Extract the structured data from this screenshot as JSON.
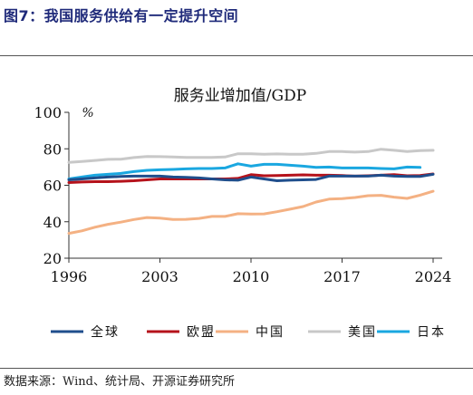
{
  "figure_title": "图7：我国服务供给有一定提升空间",
  "source_note": "数据来源：Wind、统计局、开源证券研究所",
  "chart_data": {
    "type": "line",
    "title": "服务业增加值/GDP",
    "unit_label": "%",
    "xlabel": "",
    "ylabel": "",
    "xlim": [
      1996,
      2024
    ],
    "ylim": [
      20,
      100
    ],
    "x_ticks": [
      1996,
      2003,
      2010,
      2017,
      2024
    ],
    "y_ticks": [
      20,
      40,
      60,
      80,
      100
    ],
    "grid": false,
    "legend_position": "bottom",
    "series": [
      {
        "name": "全球",
        "color": "#1f4e8c",
        "x": [
          1996,
          1997,
          1998,
          1999,
          2000,
          2001,
          2002,
          2003,
          2004,
          2005,
          2006,
          2007,
          2008,
          2009,
          2010,
          2011,
          2012,
          2013,
          2014,
          2015,
          2016,
          2017,
          2018,
          2019,
          2020,
          2021,
          2022,
          2023,
          2024
        ],
        "y": [
          63.0,
          63.5,
          64.0,
          64.5,
          64.8,
          65.0,
          65.0,
          65.0,
          64.5,
          64.3,
          64.0,
          63.5,
          63.0,
          62.8,
          64.5,
          63.5,
          62.5,
          62.8,
          63.0,
          63.2,
          65.0,
          65.0,
          65.0,
          65.0,
          65.5,
          65.0,
          64.8,
          64.8,
          66.0
        ]
      },
      {
        "name": "欧盟",
        "color": "#b5121b",
        "x": [
          1996,
          1997,
          1998,
          1999,
          2000,
          2001,
          2002,
          2003,
          2004,
          2005,
          2006,
          2007,
          2008,
          2009,
          2010,
          2011,
          2012,
          2013,
          2014,
          2015,
          2016,
          2017,
          2018,
          2019,
          2020,
          2021,
          2022,
          2023,
          2024
        ],
        "y": [
          61.5,
          61.8,
          62.0,
          62.0,
          62.2,
          62.5,
          63.0,
          63.5,
          63.5,
          63.5,
          63.5,
          63.5,
          63.5,
          63.8,
          65.8,
          65.2,
          65.3,
          65.5,
          65.7,
          65.5,
          65.5,
          65.3,
          65.0,
          65.2,
          65.5,
          65.8,
          65.2,
          65.3,
          66.2
        ]
      },
      {
        "name": "中国",
        "color": "#f4b183",
        "x": [
          1996,
          1997,
          1998,
          1999,
          2000,
          2001,
          2002,
          2003,
          2004,
          2005,
          2006,
          2007,
          2008,
          2009,
          2010,
          2011,
          2012,
          2013,
          2014,
          2015,
          2016,
          2017,
          2018,
          2019,
          2020,
          2021,
          2022,
          2023,
          2024
        ],
        "y": [
          33.6,
          35.0,
          37.0,
          38.6,
          39.8,
          41.2,
          42.3,
          42.0,
          41.2,
          41.3,
          41.8,
          42.9,
          42.9,
          44.4,
          44.2,
          44.3,
          45.5,
          46.9,
          48.3,
          50.8,
          52.4,
          52.7,
          53.3,
          54.3,
          54.5,
          53.5,
          52.8,
          54.6,
          56.7
        ]
      },
      {
        "name": "美国",
        "color": "#c8c8c8",
        "x": [
          1996,
          1997,
          1998,
          1999,
          2000,
          2001,
          2002,
          2003,
          2004,
          2005,
          2006,
          2007,
          2008,
          2009,
          2010,
          2011,
          2012,
          2013,
          2014,
          2015,
          2016,
          2017,
          2018,
          2019,
          2020,
          2021,
          2022,
          2023,
          2024
        ],
        "y": [
          72.5,
          73.0,
          73.6,
          74.2,
          74.3,
          75.2,
          75.8,
          75.7,
          75.5,
          75.3,
          75.3,
          75.3,
          75.5,
          77.3,
          77.3,
          77.0,
          77.2,
          77.0,
          77.0,
          77.5,
          78.5,
          78.5,
          78.2,
          78.5,
          79.8,
          79.2,
          78.5,
          79.0,
          79.2
        ]
      },
      {
        "name": "日本",
        "color": "#1aa7e0",
        "x": [
          1996,
          1997,
          1998,
          1999,
          2000,
          2001,
          2002,
          2003,
          2004,
          2005,
          2006,
          2007,
          2008,
          2009,
          2010,
          2011,
          2012,
          2013,
          2014,
          2015,
          2016,
          2017,
          2018,
          2019,
          2020,
          2021,
          2022,
          2023
        ],
        "y": [
          63.5,
          64.5,
          65.5,
          66.0,
          66.5,
          67.5,
          68.2,
          68.5,
          68.7,
          69.0,
          69.2,
          69.2,
          69.5,
          71.8,
          70.5,
          71.5,
          71.5,
          71.0,
          70.5,
          69.8,
          70.0,
          69.5,
          69.5,
          69.5,
          69.2,
          69.0,
          70.0,
          69.8
        ]
      }
    ]
  }
}
